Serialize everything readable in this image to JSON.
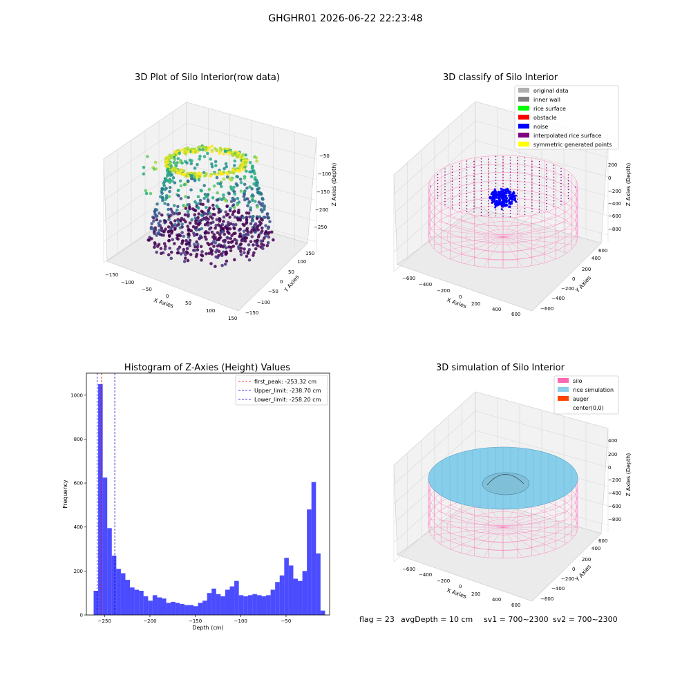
{
  "figure_title": "GHGHR01 2026-06-22 22:23:48",
  "panels": {
    "raw": {
      "title": "3D Plot of Silo Interior(row data)",
      "xlabel": "X Axies",
      "ylabel": "Y Axies",
      "zlabel": "Z Axies (Depth)",
      "xticks": [
        "−150",
        "−100",
        "−50",
        "0",
        "50",
        "100",
        "150"
      ],
      "yticks": [
        "−150",
        "−100",
        "−50",
        "0",
        "50",
        "100",
        "150"
      ],
      "zticks": [
        "−50",
        "−100",
        "−150",
        "−200",
        "−250"
      ]
    },
    "classify": {
      "title": "3D classify of Silo Interior",
      "xlabel": "X Axies",
      "ylabel": "Y Axies",
      "zlabel": "Z Axies (Depth)",
      "xticks": [
        "−600",
        "−400",
        "−200",
        "0",
        "200",
        "400",
        "600"
      ],
      "yticks": [
        "−600",
        "−400",
        "−200",
        "0",
        "200",
        "400",
        "600"
      ],
      "zticks": [
        "200",
        "0",
        "−200",
        "−400",
        "−600",
        "−800"
      ],
      "legend": [
        {
          "label": "original data",
          "color": "#b0b0b0"
        },
        {
          "label": "inner wall",
          "color": "#808080"
        },
        {
          "label": "rice surface",
          "color": "#00ff00"
        },
        {
          "label": "obstacle",
          "color": "#ff0000"
        },
        {
          "label": "noise",
          "color": "#0000ff"
        },
        {
          "label": "interpolated rice surface",
          "color": "#800080"
        },
        {
          "label": "symmetric generated points",
          "color": "#ffff00"
        }
      ]
    },
    "histogram": {
      "title": "Histogram of Z-Axies (Height) Values",
      "xlabel": "Depth (cm)",
      "ylabel": "Frequency",
      "xticks": [
        "−250",
        "−200",
        "−150",
        "−100",
        "−50"
      ],
      "yticks": [
        "0",
        "200",
        "400",
        "600",
        "800",
        "1000"
      ],
      "legend": [
        {
          "label": "first_peak: -253.32 cm",
          "color": "#ff0000"
        },
        {
          "label": "Upper_limit: -238.70 cm",
          "color": "#0000cc"
        },
        {
          "label": "Lower_limit: -258.20 cm",
          "color": "#0000cc"
        }
      ]
    },
    "simulation": {
      "title": "3D simulation of Silo Interior",
      "xlabel": "X Axies",
      "ylabel": "Y Axies",
      "zlabel": "Z Axies (Depth)",
      "xticks": [
        "−600",
        "−400",
        "−200",
        "0",
        "200",
        "400",
        "600"
      ],
      "yticks": [
        "−600",
        "−400",
        "−200",
        "0",
        "200",
        "400",
        "600"
      ],
      "zticks": [
        "400",
        "200",
        "0",
        "−200",
        "−400",
        "−600",
        "−800"
      ],
      "legend": [
        {
          "label": "silo",
          "color": "#ff69b4"
        },
        {
          "label": "rice simulation",
          "color": "#87ceeb"
        },
        {
          "label": "auger",
          "color": "#ff4500"
        },
        {
          "label": "center(0,0)",
          "color": ""
        }
      ]
    }
  },
  "footer": {
    "flag": "flag = 23",
    "avg_depth": "avgDepth = 10 cm",
    "sv1": "sv1 = 700~2300",
    "sv2": "sv2 = 700~2300"
  },
  "chart_data": [
    {
      "type": "scatter",
      "title": "3D Plot of Silo Interior(row data)",
      "xlabel": "X Axies",
      "ylabel": "Y Axies",
      "zlabel": "Z Axies (Depth)",
      "xlim": [
        -150,
        150
      ],
      "ylim": [
        -150,
        150
      ],
      "zlim": [
        -280,
        -30
      ],
      "colormap": "viridis"
    },
    {
      "type": "scatter",
      "title": "3D classify of Silo Interior",
      "xlabel": "X Axies",
      "ylabel": "Y Axies",
      "zlabel": "Z Axies (Depth)",
      "xlim": [
        -700,
        700
      ],
      "ylim": [
        -700,
        700
      ],
      "zlim": [
        -900,
        300
      ]
    },
    {
      "type": "bar",
      "title": "Histogram of Z-Axies (Height) Values",
      "xlabel": "Depth (cm)",
      "ylabel": "Frequency",
      "xlim": [
        -270,
        -2
      ],
      "ylim": [
        0,
        1100
      ],
      "bin_width": 5,
      "bin_start": -262,
      "values": [
        110,
        1050,
        625,
        395,
        270,
        210,
        190,
        160,
        125,
        115,
        110,
        85,
        65,
        90,
        80,
        75,
        55,
        60,
        55,
        50,
        45,
        45,
        40,
        55,
        65,
        100,
        120,
        95,
        85,
        115,
        130,
        155,
        90,
        85,
        90,
        95,
        90,
        85,
        90,
        115,
        150,
        180,
        260,
        225,
        165,
        155,
        200,
        480,
        605,
        280,
        20
      ],
      "vlines": [
        {
          "x": -253.32,
          "color": "#ff0000",
          "label": "first_peak: -253.32 cm"
        },
        {
          "x": -238.7,
          "color": "#0000cc",
          "label": "Upper_limit: -238.70 cm"
        },
        {
          "x": -258.2,
          "color": "#0000cc",
          "label": "Lower_limit: -258.20 cm"
        }
      ],
      "legend_position": "top-right"
    },
    {
      "type": "area",
      "title": "3D simulation of Silo Interior",
      "xlabel": "X Axies",
      "ylabel": "Y Axies",
      "zlabel": "Z Axies (Depth)",
      "xlim": [
        -700,
        700
      ],
      "ylim": [
        -700,
        700
      ],
      "zlim": [
        -900,
        500
      ]
    }
  ]
}
